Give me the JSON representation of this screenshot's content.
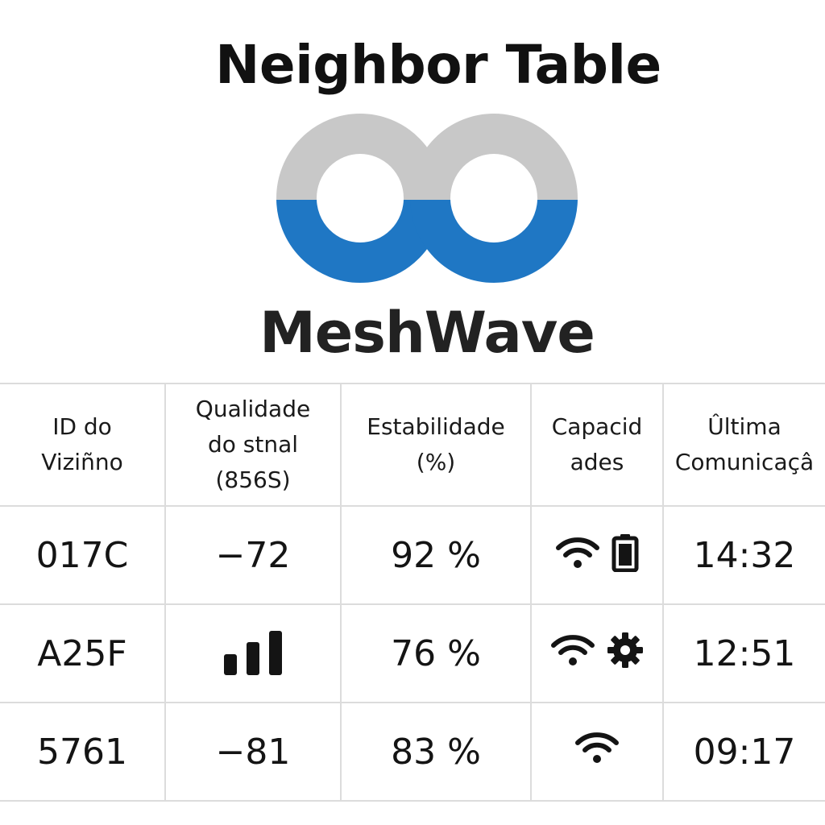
{
  "header": {
    "title": "Neighbor Table",
    "brand": "MeshWave"
  },
  "colors": {
    "logo_gray": "#c8c8c8",
    "logo_blue": "#1f77c4",
    "grid": "#dcdcdc",
    "text": "#141414"
  },
  "table": {
    "columns": [
      {
        "lines": [
          "ID do",
          "Viziñno"
        ]
      },
      {
        "lines": [
          "Qualidade",
          "do stnal",
          "(856S)"
        ]
      },
      {
        "lines": [
          "Estabilidade",
          "(%)"
        ]
      },
      {
        "lines": [
          "Capacid",
          "ades"
        ]
      },
      {
        "lines": [
          "Ûltima",
          "Comunicaçâ"
        ]
      }
    ],
    "rows": [
      {
        "id": "017C",
        "signal": "−72",
        "stability": "92 %",
        "capabilities": [
          "wifi-icon",
          "battery-icon"
        ],
        "last_contact": "14:32"
      },
      {
        "id": "A25F",
        "signal_icon": "signal-bars-icon",
        "stability": "76 %",
        "capabilities": [
          "wifi-icon",
          "gear-icon"
        ],
        "last_contact": "12:51"
      },
      {
        "id": "5761",
        "signal": "−81",
        "stability": "83 %",
        "capabilities": [
          "wifi-icon"
        ],
        "last_contact": "09:17"
      }
    ]
  }
}
